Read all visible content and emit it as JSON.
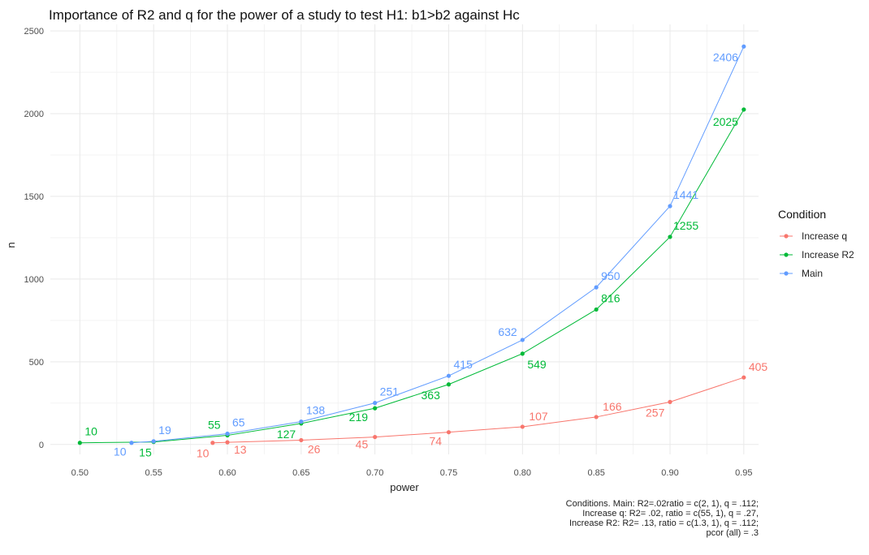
{
  "chart_data": {
    "type": "line",
    "title": "Importance of R2 and q for the power of a study to test H1: b1>b2 against Hc",
    "xlabel": "power",
    "ylabel": "n",
    "xlim": [
      0.48,
      0.96
    ],
    "ylim": [
      -60,
      2540
    ],
    "x_ticks": [
      0.5,
      0.55,
      0.6,
      0.65,
      0.7,
      0.75,
      0.8,
      0.85,
      0.9,
      0.95
    ],
    "x_tick_labels": [
      "0.50",
      "0.55",
      "0.60",
      "0.65",
      "0.70",
      "0.75",
      "0.80",
      "0.85",
      "0.90",
      "0.95"
    ],
    "y_ticks": [
      0,
      500,
      1000,
      1500,
      2000,
      2500
    ],
    "y_tick_labels": [
      "0",
      "500",
      "1000",
      "1500",
      "2000",
      "2500"
    ],
    "grid": true,
    "legend": {
      "title": "Condition",
      "position": "right"
    },
    "series": [
      {
        "name": "Increase q",
        "color": "#F8766D",
        "points": [
          {
            "x": 0.59,
            "y": 10,
            "label": "10"
          },
          {
            "x": 0.6,
            "y": 13,
            "label": "13"
          },
          {
            "x": 0.65,
            "y": 26,
            "label": "26"
          },
          {
            "x": 0.7,
            "y": 45,
            "label": "45"
          },
          {
            "x": 0.75,
            "y": 74,
            "label": "74"
          },
          {
            "x": 0.8,
            "y": 107,
            "label": "107"
          },
          {
            "x": 0.85,
            "y": 166,
            "label": "166"
          },
          {
            "x": 0.9,
            "y": 257,
            "label": "257"
          },
          {
            "x": 0.95,
            "y": 405,
            "label": "405"
          }
        ]
      },
      {
        "name": "Increase R2",
        "color": "#00BA38",
        "points": [
          {
            "x": 0.5,
            "y": 10,
            "label": "10"
          },
          {
            "x": 0.55,
            "y": 15,
            "label": "15"
          },
          {
            "x": 0.6,
            "y": 55,
            "label": "55"
          },
          {
            "x": 0.65,
            "y": 127,
            "label": "127"
          },
          {
            "x": 0.7,
            "y": 219,
            "label": "219"
          },
          {
            "x": 0.75,
            "y": 363,
            "label": "363"
          },
          {
            "x": 0.8,
            "y": 549,
            "label": "549"
          },
          {
            "x": 0.85,
            "y": 816,
            "label": "816"
          },
          {
            "x": 0.9,
            "y": 1255,
            "label": "1255"
          },
          {
            "x": 0.95,
            "y": 2025,
            "label": "2025"
          }
        ]
      },
      {
        "name": "Main",
        "color": "#619CFF",
        "points": [
          {
            "x": 0.535,
            "y": 10,
            "label": "10"
          },
          {
            "x": 0.55,
            "y": 19,
            "label": "19"
          },
          {
            "x": 0.6,
            "y": 65,
            "label": "65"
          },
          {
            "x": 0.65,
            "y": 138,
            "label": "138"
          },
          {
            "x": 0.7,
            "y": 251,
            "label": "251"
          },
          {
            "x": 0.75,
            "y": 415,
            "label": "415"
          },
          {
            "x": 0.8,
            "y": 632,
            "label": "632"
          },
          {
            "x": 0.85,
            "y": 950,
            "label": "950"
          },
          {
            "x": 0.9,
            "y": 1441,
            "label": "1441"
          },
          {
            "x": 0.95,
            "y": 2406,
            "label": "2406"
          }
        ]
      }
    ],
    "caption": [
      "Conditions. Main: R2=.02ratio = c(2, 1), q = .112;",
      "Increase q: R2= .02, ratio = c(55, 1), q = .27,",
      "Increase R2: R2= .13, ratio = c(1.3, 1), q = .112;",
      "pcor (all) = .3"
    ]
  }
}
